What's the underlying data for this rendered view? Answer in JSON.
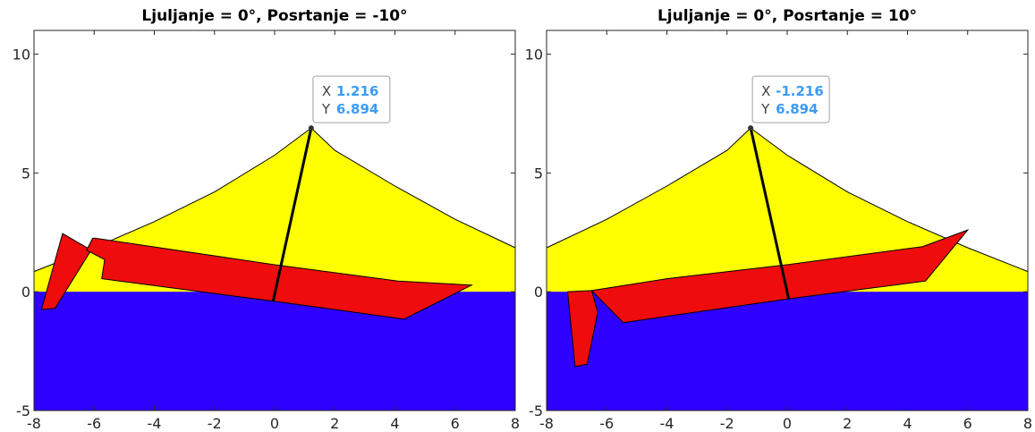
{
  "chart_data": [
    {
      "type": "area",
      "title": "Ljuljanje = 0°, Posrtanje = -10°",
      "xlim": [
        -8,
        8
      ],
      "ylim": [
        -5,
        11
      ],
      "xticks": [
        -8,
        -6,
        -4,
        -2,
        0,
        2,
        4,
        6,
        8
      ],
      "yticks": [
        -5,
        0,
        5,
        10
      ],
      "grid": false,
      "colors": {
        "water": "#2e00ff",
        "sail": "#ffff00",
        "hull": "#ee0c0c",
        "mast": "#000000"
      },
      "sail_outline": {
        "x": [
          -8,
          -6,
          -4,
          -2,
          0,
          1.216,
          2,
          4,
          6,
          8
        ],
        "y": [
          0.85,
          1.85,
          2.95,
          4.2,
          5.75,
          6.894,
          5.95,
          4.45,
          3.05,
          1.85
        ]
      },
      "hull": {
        "x": [
          -6.05,
          -6.25,
          -5.65,
          -5.75,
          -0.02,
          4.3,
          6.55,
          4.1,
          -0.08,
          -5.95
        ],
        "y": [
          2.25,
          1.75,
          1.35,
          0.55,
          -0.4,
          -1.15,
          0.28,
          0.45,
          1.15,
          2.25
        ]
      },
      "rudder": {
        "x": [
          -7.05,
          -6.1,
          -7.3,
          -7.75
        ],
        "y": [
          2.45,
          1.75,
          -0.7,
          -0.75
        ]
      },
      "mast": {
        "x": [
          -0.05,
          1.216
        ],
        "y": [
          -0.4,
          6.894
        ]
      },
      "datatip": {
        "x_label": "X",
        "x_value": "1.216",
        "y_label": "Y",
        "y_value": "6.894"
      }
    },
    {
      "type": "area",
      "title": "Ljuljanje = 0°, Posrtanje = 10°",
      "xlim": [
        -8,
        8
      ],
      "ylim": [
        -5,
        11
      ],
      "xticks": [
        -8,
        -6,
        -4,
        -2,
        0,
        2,
        4,
        6,
        8
      ],
      "yticks": [
        -5,
        0,
        5,
        10
      ],
      "grid": false,
      "colors": {
        "water": "#2e00ff",
        "sail": "#ffff00",
        "hull": "#ee0c0c",
        "mast": "#000000"
      },
      "sail_outline": {
        "x": [
          -8,
          -6,
          -4,
          -2,
          -1.216,
          0,
          2,
          4,
          6,
          8
        ],
        "y": [
          1.85,
          3.05,
          4.45,
          5.95,
          6.894,
          5.75,
          4.2,
          2.95,
          1.85,
          0.85
        ]
      },
      "hull": {
        "x": [
          -6.5,
          -5.45,
          0.02,
          4.6,
          6.0,
          4.5,
          0.08,
          -4.0,
          -6.5
        ],
        "y": [
          0.05,
          -1.3,
          -0.3,
          0.45,
          2.6,
          1.9,
          1.15,
          0.55,
          0.05
        ]
      },
      "rudder": {
        "x": [
          -7.3,
          -6.5,
          -6.3,
          -6.65,
          -7.05
        ],
        "y": [
          0.0,
          0.05,
          -0.85,
          -3.05,
          -3.15
        ]
      },
      "mast": {
        "x": [
          0.05,
          -1.216
        ],
        "y": [
          -0.3,
          6.894
        ]
      },
      "datatip": {
        "x_label": "X",
        "x_value": "-1.216",
        "y_label": "Y",
        "y_value": "6.894"
      }
    }
  ]
}
